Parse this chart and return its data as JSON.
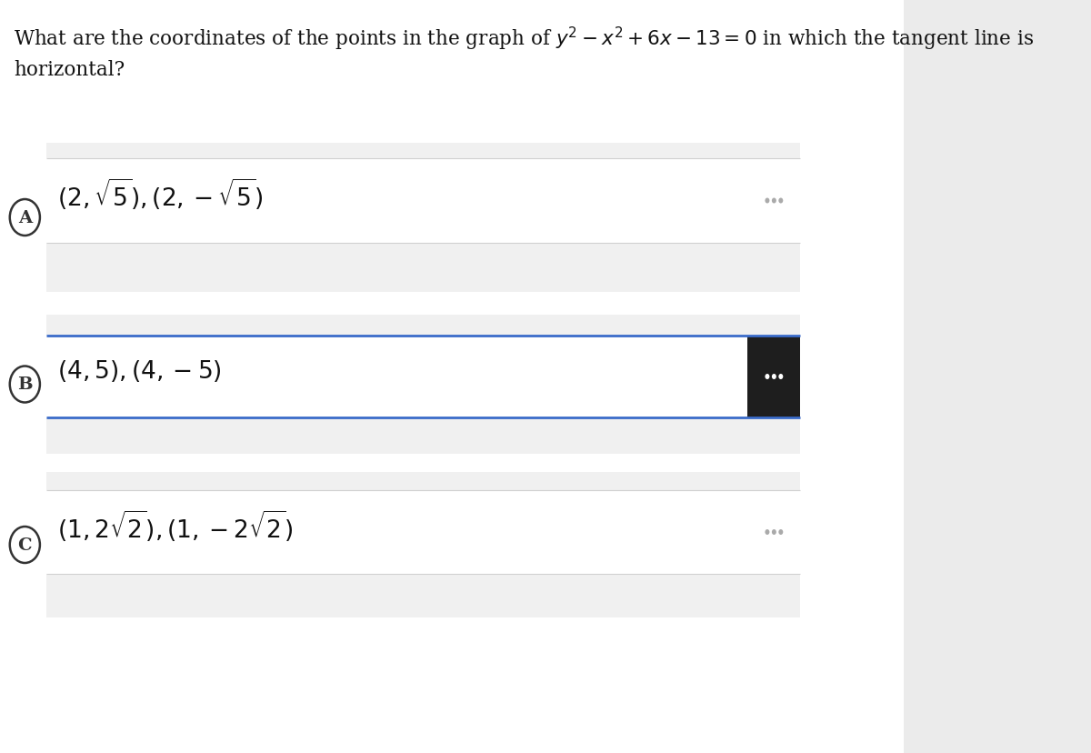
{
  "outer_bg": "#ebebeb",
  "page_bg": "#ffffff",
  "option_bg": "#ffffff",
  "option_gray_bg": "#f0f0f0",
  "question_line1": "What are the coordinates of the points in the graph of $y^2 - x^2 + 6x - 13 = 0$ in which the tangent line is",
  "question_line2": "horizontal?",
  "options": [
    {
      "label": "A",
      "text": "$(2, \\sqrt{5}), (2, -\\sqrt{5})$",
      "highlighted": false
    },
    {
      "label": "B",
      "text": "$(4, 5), (4, -5)$",
      "highlighted": true
    },
    {
      "label": "C",
      "text": "$(1, 2\\sqrt{2}), (1, -2\\sqrt{2})$",
      "highlighted": false
    }
  ],
  "question_fontsize": 15.5,
  "option_fontsize": 19,
  "label_fontsize": 14,
  "blue_border": "#3a6bc9",
  "gray_border": "#d0d0d0",
  "dark_dots_bg": "#1e1e1e",
  "gray_dots_color": "#aaaaaa",
  "white_dots_color": "#ffffff",
  "label_circle_color": "#333333"
}
